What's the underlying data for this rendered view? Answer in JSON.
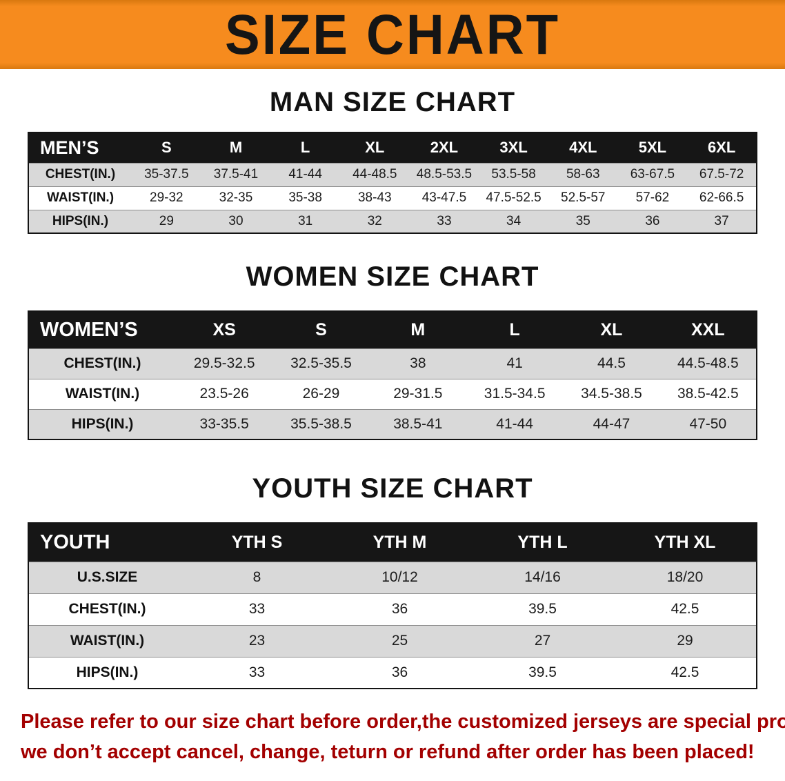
{
  "banner": {
    "title": "SIZE CHART",
    "bg_color": "#f68b1e",
    "text_color": "#151515"
  },
  "sections": [
    {
      "id": "men",
      "heading": "MAN SIZE CHART",
      "header": [
        "MEN’S",
        "S",
        "M",
        "L",
        "XL",
        "2XL",
        "3XL",
        "4XL",
        "5XL",
        "6XL"
      ],
      "rows": [
        {
          "label": "CHEST(IN.)",
          "values": [
            "35-37.5",
            "37.5-41",
            "41-44",
            "44-48.5",
            "48.5-53.5",
            "53.5-58",
            "58-63",
            "63-67.5",
            "67.5-72"
          ]
        },
        {
          "label": "WAIST(IN.)",
          "values": [
            "29-32",
            "32-35",
            "35-38",
            "38-43",
            "43-47.5",
            "47.5-52.5",
            "52.5-57",
            "57-62",
            "62-66.5"
          ]
        },
        {
          "label": "HIPS(IN.)",
          "values": [
            "29",
            "30",
            "31",
            "32",
            "33",
            "34",
            "35",
            "36",
            "37"
          ]
        }
      ]
    },
    {
      "id": "women",
      "heading": "WOMEN SIZE CHART",
      "header": [
        "WOMEN’S",
        "XS",
        "S",
        "M",
        "L",
        "XL",
        "XXL"
      ],
      "rows": [
        {
          "label": "CHEST(IN.)",
          "values": [
            "29.5-32.5",
            "32.5-35.5",
            "38",
            "41",
            "44.5",
            "44.5-48.5"
          ]
        },
        {
          "label": "WAIST(IN.)",
          "values": [
            "23.5-26",
            "26-29",
            "29-31.5",
            "31.5-34.5",
            "34.5-38.5",
            "38.5-42.5"
          ]
        },
        {
          "label": "HIPS(IN.)",
          "values": [
            "33-35.5",
            "35.5-38.5",
            "38.5-41",
            "41-44",
            "44-47",
            "47-50"
          ]
        }
      ]
    },
    {
      "id": "youth",
      "heading": "YOUTH SIZE CHART",
      "header": [
        "YOUTH",
        "YTH S",
        "YTH M",
        "YTH L",
        "YTH XL"
      ],
      "rows": [
        {
          "label": "U.S.SIZE",
          "values": [
            "8",
            "10/12",
            "14/16",
            "18/20"
          ]
        },
        {
          "label": "CHEST(IN.)",
          "values": [
            "33",
            "36",
            "39.5",
            "42.5"
          ]
        },
        {
          "label": "WAIST(IN.)",
          "values": [
            "23",
            "25",
            "27",
            "29"
          ]
        },
        {
          "label": "HIPS(IN.)",
          "values": [
            "33",
            "36",
            "39.5",
            "42.5"
          ]
        }
      ]
    }
  ],
  "footer": {
    "text_color": "#a30000",
    "lines": [
      "Please refer to our size chart before order,the customized jerseys are special products,",
      "we don’t accept cancel, change, teturn or refund after order has been placed!"
    ]
  }
}
